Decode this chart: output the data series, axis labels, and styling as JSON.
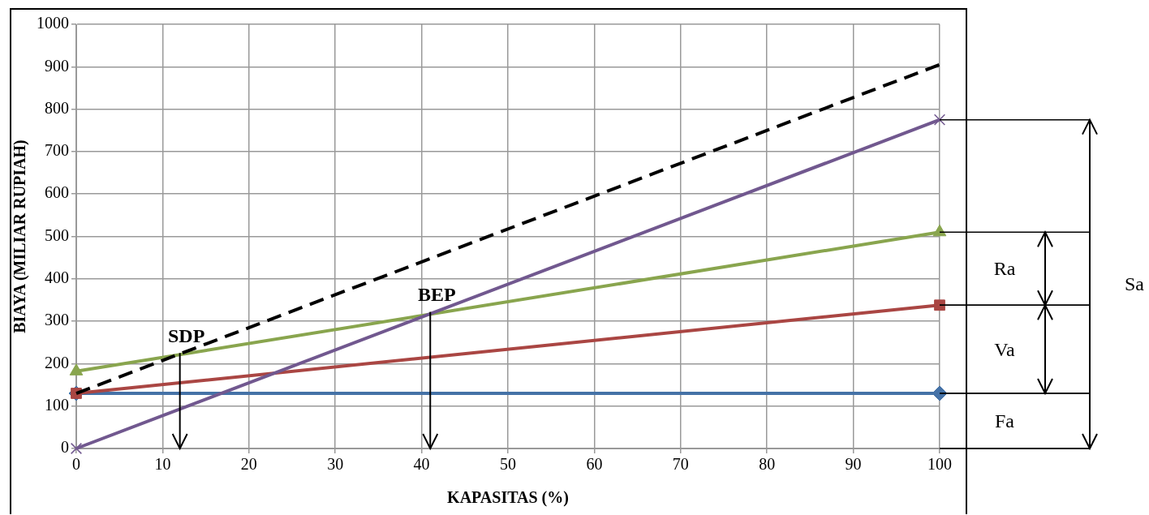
{
  "chart_data": {
    "type": "line",
    "xlabel": "KAPASITAS (%)",
    "ylabel": "BIAYA (MILIAR RUPIAH)",
    "x": [
      0,
      100
    ],
    "xlim": [
      0,
      100
    ],
    "xticks": [
      0,
      10,
      20,
      30,
      40,
      50,
      60,
      70,
      80,
      90,
      100
    ],
    "ylim": [
      0,
      1000
    ],
    "yticks": [
      0,
      100,
      200,
      300,
      400,
      500,
      600,
      700,
      800,
      900,
      1000
    ],
    "grid": true,
    "legend": false,
    "series": [
      {
        "color": "#4572a7",
        "values": [
          130,
          130
        ],
        "marker": "diamond"
      },
      {
        "color": "#aa4643",
        "values": [
          130,
          338
        ],
        "marker": "square"
      },
      {
        "color": "#89a54e",
        "values": [
          182,
          510
        ],
        "marker": "triangle"
      },
      {
        "color": "#71588f",
        "values": [
          0,
          775
        ],
        "marker": "cross"
      },
      {
        "color": "#000000",
        "values": [
          130,
          905
        ],
        "marker": "none",
        "line_style": "dashed"
      }
    ],
    "annotations": [
      {
        "text": "SDP",
        "x": 12,
        "y": 225
      },
      {
        "text": "BEP",
        "x": 41,
        "y": 322
      },
      "Fa",
      "Va",
      "Ra",
      "Sa"
    ]
  }
}
